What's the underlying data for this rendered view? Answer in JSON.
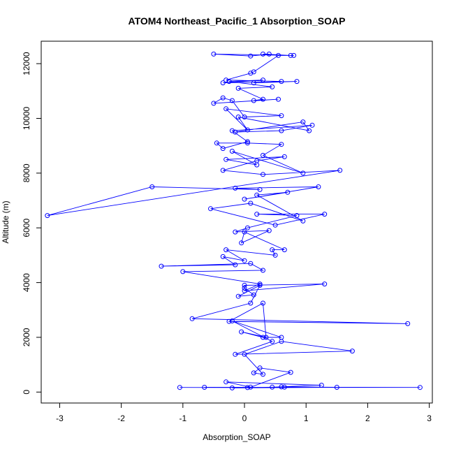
{
  "chart_data": {
    "type": "line",
    "title": "ATOM4 Northeast_Pacific_1 Absorption_SOAP",
    "xlabel": "Absorption_SOAP",
    "ylabel": "Altitude (m)",
    "xlim": [
      -3.3,
      3.05
    ],
    "ylim": [
      -400,
      12820
    ],
    "xticks": [
      -3,
      -2,
      -1,
      0,
      1,
      2,
      3
    ],
    "yticks": [
      0,
      2000,
      4000,
      6000,
      8000,
      10000,
      12000
    ],
    "grid": false,
    "legend": "none",
    "colors": {
      "series": "#0000ff",
      "axis": "#000000",
      "background": "#ffffff"
    },
    "series": [
      {
        "marker": "open-circle",
        "x": [
          -1.05,
          0.05,
          -0.65,
          2.85,
          0.65,
          0.6,
          1.5,
          -0.2,
          0.45,
          1.25,
          -0.3,
          0.1,
          0.75,
          0.25,
          0.15,
          0.3,
          0.0,
          0.6,
          1.75,
          -0.15,
          0.45,
          -0.2,
          0.6,
          0.3,
          -0.05,
          0.35,
          0.3,
          -0.25,
          2.65,
          -0.85,
          0.1,
          0.25,
          -0.1,
          0.15,
          0.0,
          0.0,
          1.3,
          0.0,
          0.25,
          -1.0,
          0.3,
          0.1,
          -1.35,
          -0.15,
          -0.35,
          0.0,
          -0.3,
          0.5,
          0.45,
          0.65,
          0.0,
          -0.05,
          0.4,
          -0.15,
          0.05,
          0.85,
          0.2,
          1.3,
          0.5,
          -0.55,
          0.1,
          0.95,
          0.2,
          0.7,
          0.0,
          1.2,
          -0.15,
          0.25,
          -1.5,
          -3.2,
          1.55,
          0.3,
          -0.35,
          0.2,
          0.65,
          -0.3,
          0.2,
          -0.2,
          0.95,
          0.3,
          0.6,
          0.05,
          -0.45,
          -0.35,
          0.05,
          -0.2,
          1.1,
          0.6,
          -0.15,
          0.95,
          1.05,
          -0.1,
          0.05,
          -0.3,
          0.6,
          0.0,
          -0.2,
          -0.35,
          -0.5,
          0.55,
          0.15,
          0.3,
          -0.1,
          0.45,
          -0.25,
          0.3,
          -0.35,
          0.85,
          0.15,
          0.6,
          -0.3,
          0.1,
          0.15,
          0.55,
          0.75,
          0.3,
          0.4,
          0.1,
          -0.5,
          0.8
        ],
        "y": [
          170,
          165,
          175,
          170,
          180,
          190,
          175,
          150,
          180,
          250,
          370,
          180,
          720,
          880,
          700,
          650,
          1380,
          1850,
          1500,
          1380,
          1850,
          2600,
          2000,
          2000,
          2200,
          2000,
          3250,
          2580,
          2500,
          2680,
          3250,
          3900,
          3500,
          3550,
          3800,
          3900,
          3950,
          3700,
          3950,
          4400,
          4450,
          4700,
          4600,
          4650,
          4950,
          4800,
          5200,
          5000,
          5200,
          5200,
          5850,
          5450,
          5900,
          5850,
          6000,
          6450,
          6500,
          6500,
          6100,
          6700,
          6900,
          6250,
          7200,
          7300,
          7050,
          7500,
          7450,
          7400,
          7500,
          6450,
          8100,
          7950,
          8100,
          8450,
          8600,
          8500,
          8300,
          8800,
          8000,
          8650,
          9050,
          9100,
          9100,
          8900,
          9150,
          9550,
          9750,
          9550,
          9500,
          9870,
          9550,
          10050,
          9580,
          10350,
          10100,
          10050,
          10650,
          10750,
          10550,
          10700,
          10650,
          10700,
          11100,
          11150,
          11350,
          11400,
          11300,
          11350,
          11300,
          11350,
          11400,
          11650,
          11700,
          12300,
          12300,
          12350,
          12350,
          12280,
          12350,
          12300
        ]
      }
    ]
  }
}
